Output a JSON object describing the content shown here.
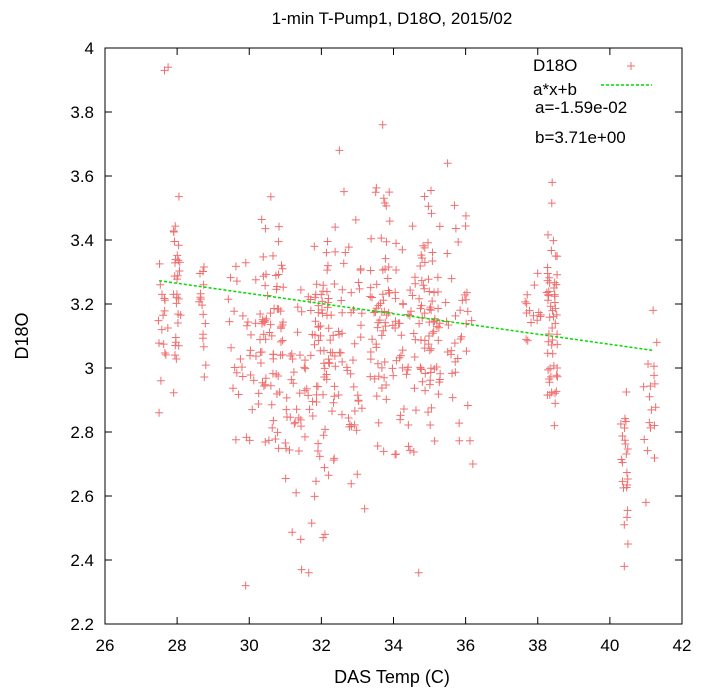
{
  "chart_data": {
    "type": "scatter",
    "title": "1-min T-Pump1, D18O, 2015/02",
    "xlabel": "DAS Temp (C)",
    "ylabel": "D18O",
    "xlim": [
      26,
      42
    ],
    "ylim": [
      2.2,
      4.0
    ],
    "xticks": [
      "26",
      "28",
      "30",
      "32",
      "34",
      "36",
      "38",
      "40",
      "42"
    ],
    "yticks": [
      "2.2",
      "2.4",
      "2.6",
      "2.8",
      "3",
      "3.2",
      "3.4",
      "3.6",
      "3.8",
      "4"
    ],
    "grid": false,
    "legend_position": "top-right",
    "series": [
      {
        "name": "D18O",
        "style": "plus-markers",
        "color": "#f07070",
        "clusters": [
          {
            "x_center": 27.6,
            "x_spread": 0.15,
            "y_min": 2.85,
            "y_max": 3.42,
            "count": 14
          },
          {
            "x_center": 28.0,
            "x_spread": 0.12,
            "y_min": 2.82,
            "y_max": 3.64,
            "count": 30
          },
          {
            "x_center": 28.7,
            "x_spread": 0.1,
            "y_min": 2.83,
            "y_max": 3.48,
            "count": 16
          },
          {
            "x_center": 29.8,
            "x_spread": 0.4,
            "y_min": 2.65,
            "y_max": 3.45,
            "count": 30
          },
          {
            "x_center": 30.6,
            "x_spread": 0.35,
            "y_min": 2.58,
            "y_max": 3.64,
            "count": 70
          },
          {
            "x_center": 31.4,
            "x_spread": 0.4,
            "y_min": 2.37,
            "y_max": 3.55,
            "count": 45
          },
          {
            "x_center": 32.1,
            "x_spread": 0.3,
            "y_min": 2.4,
            "y_max": 3.67,
            "count": 70
          },
          {
            "x_center": 32.8,
            "x_spread": 0.35,
            "y_min": 2.56,
            "y_max": 3.68,
            "count": 45
          },
          {
            "x_center": 33.6,
            "x_spread": 0.3,
            "y_min": 2.6,
            "y_max": 3.76,
            "count": 60
          },
          {
            "x_center": 34.3,
            "x_spread": 0.35,
            "y_min": 2.6,
            "y_max": 3.55,
            "count": 45
          },
          {
            "x_center": 35.0,
            "x_spread": 0.3,
            "y_min": 2.62,
            "y_max": 3.67,
            "count": 70
          },
          {
            "x_center": 35.8,
            "x_spread": 0.4,
            "y_min": 2.63,
            "y_max": 3.65,
            "count": 35
          },
          {
            "x_center": 37.9,
            "x_spread": 0.25,
            "y_min": 3.0,
            "y_max": 3.35,
            "count": 15
          },
          {
            "x_center": 38.4,
            "x_spread": 0.15,
            "y_min": 2.64,
            "y_max": 3.58,
            "count": 55
          },
          {
            "x_center": 40.4,
            "x_spread": 0.1,
            "y_min": 2.38,
            "y_max": 3.0,
            "count": 20
          },
          {
            "x_center": 41.1,
            "x_spread": 0.2,
            "y_min": 2.58,
            "y_max": 3.18,
            "count": 14
          }
        ],
        "points": [
          {
            "x": 27.65,
            "y": 3.93
          },
          {
            "x": 27.75,
            "y": 3.94
          },
          {
            "x": 27.5,
            "y": 2.86
          },
          {
            "x": 27.55,
            "y": 2.96
          },
          {
            "x": 29.9,
            "y": 2.32
          },
          {
            "x": 31.45,
            "y": 2.37
          },
          {
            "x": 31.65,
            "y": 2.36
          },
          {
            "x": 32.05,
            "y": 2.47
          },
          {
            "x": 32.1,
            "y": 2.48
          },
          {
            "x": 34.7,
            "y": 2.36
          },
          {
            "x": 40.4,
            "y": 2.38
          },
          {
            "x": 40.5,
            "y": 2.45
          },
          {
            "x": 40.4,
            "y": 2.51
          },
          {
            "x": 41.0,
            "y": 2.58
          },
          {
            "x": 31.3,
            "y": 2.61
          },
          {
            "x": 33.2,
            "y": 2.56
          },
          {
            "x": 33.7,
            "y": 3.76
          },
          {
            "x": 32.5,
            "y": 3.68
          },
          {
            "x": 35.5,
            "y": 3.64
          },
          {
            "x": 38.4,
            "y": 3.58
          },
          {
            "x": 41.2,
            "y": 3.18
          },
          {
            "x": 41.3,
            "y": 3.08
          },
          {
            "x": 41.1,
            "y": 2.91
          },
          {
            "x": 36.2,
            "y": 2.7
          }
        ]
      },
      {
        "name": "a*x+b",
        "style": "dashed-line",
        "color": "#00dd00",
        "slope": -0.0159,
        "intercept": 3.71,
        "x_range": [
          27.5,
          41.2
        ]
      }
    ],
    "annotations": [
      "a=-1.59e-02",
      "b=3.71e+00"
    ]
  }
}
